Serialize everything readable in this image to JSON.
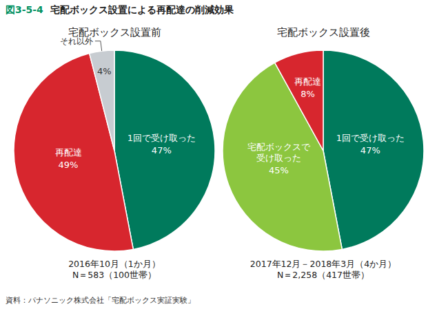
{
  "figure_number": "図3-5-4",
  "title": "宅配ボックス設置による再配達の削減効果",
  "source": "資料：パナソニック株式会社「宅配ボックス実証実験」",
  "chart_data": [
    {
      "type": "pie",
      "title": "宅配ボックス設置前",
      "categories": [
        "1回で受け取った",
        "再配達",
        "それ以外"
      ],
      "values": [
        47,
        49,
        4
      ],
      "value_labels": [
        "47%",
        "49%",
        "4%"
      ],
      "colors": [
        "#007a5c",
        "#d7262e",
        "#c7ccd1"
      ],
      "data_labels": true,
      "annotations": [
        "2016年10月（1か月）",
        "N＝583（100世帯）"
      ]
    },
    {
      "type": "pie",
      "title": "宅配ボックス設置後",
      "categories": [
        "1回で受け取った",
        "宅配ボックスで\n受け取った",
        "再配達"
      ],
      "values": [
        47,
        45,
        8
      ],
      "value_labels": [
        "47%",
        "45%",
        "8%"
      ],
      "colors": [
        "#007a5c",
        "#8cc63f",
        "#d7262e"
      ],
      "data_labels": true,
      "annotations": [
        "2017年12月－2018年3月（4か月）",
        "N＝2,258（417世帯）"
      ]
    }
  ]
}
